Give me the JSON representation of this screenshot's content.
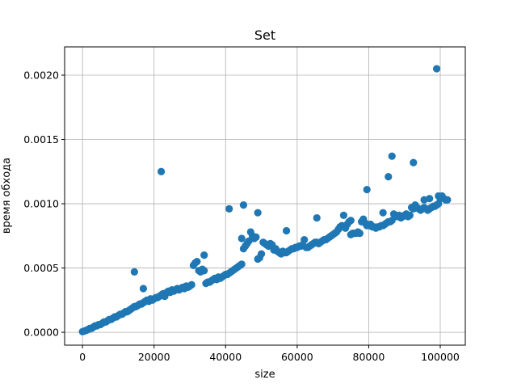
{
  "chart_data": {
    "type": "scatter",
    "title": "Set",
    "xlabel": "size",
    "ylabel": "время обхода",
    "xlim": [
      -5000,
      107000
    ],
    "ylim": [
      -0.0001,
      0.00222
    ],
    "xticks": [
      0,
      20000,
      40000,
      60000,
      80000,
      100000
    ],
    "xtick_labels": [
      "0",
      "20000",
      "40000",
      "60000",
      "80000",
      "100000"
    ],
    "yticks": [
      0.0,
      0.0005,
      0.001,
      0.0015,
      0.002
    ],
    "ytick_labels": [
      "0.0000",
      "0.0005",
      "0.0010",
      "0.0015",
      "0.0020"
    ],
    "grid": true,
    "color": "#1f77b4",
    "series": [
      {
        "points": [
          [
            0,
            5e-06
          ],
          [
            500,
            1e-05
          ],
          [
            1000,
            1.5e-05
          ],
          [
            1500,
            2e-05
          ],
          [
            2000,
            3e-05
          ],
          [
            2500,
            3e-05
          ],
          [
            3000,
            4e-05
          ],
          [
            3500,
            5e-05
          ],
          [
            4000,
            5e-05
          ],
          [
            4500,
            6e-05
          ],
          [
            5000,
            6e-05
          ],
          [
            5500,
            7e-05
          ],
          [
            6000,
            8e-05
          ],
          [
            6500,
            8e-05
          ],
          [
            7000,
            9e-05
          ],
          [
            7500,
            0.0001
          ],
          [
            8000,
            0.0001
          ],
          [
            8500,
            0.00011
          ],
          [
            9000,
            0.00012
          ],
          [
            9500,
            0.00012
          ],
          [
            10000,
            0.00013
          ],
          [
            10500,
            0.00014
          ],
          [
            11000,
            0.00014
          ],
          [
            11500,
            0.00015
          ],
          [
            12000,
            0.00016
          ],
          [
            12500,
            0.00016
          ],
          [
            13000,
            0.00017
          ],
          [
            13500,
            0.00018
          ],
          [
            14000,
            0.00019
          ],
          [
            14500,
            0.0002
          ],
          [
            15000,
            0.0002
          ],
          [
            15500,
            0.00021
          ],
          [
            16000,
            0.00022
          ],
          [
            16500,
            0.00022
          ],
          [
            17000,
            0.00023
          ],
          [
            17500,
            0.00024
          ],
          [
            18000,
            0.00025
          ],
          [
            18500,
            0.00024
          ],
          [
            19000,
            0.00026
          ],
          [
            19500,
            0.00025
          ],
          [
            20000,
            0.00026
          ],
          [
            20500,
            0.00027
          ],
          [
            21000,
            0.00027
          ],
          [
            21500,
            0.00028
          ],
          [
            22000,
            0.00029
          ],
          [
            22500,
            0.0003
          ],
          [
            23000,
            0.00028
          ],
          [
            23500,
            0.00031
          ],
          [
            24000,
            0.00032
          ],
          [
            24500,
            0.00031
          ],
          [
            25000,
            0.00033
          ],
          [
            25500,
            0.00032
          ],
          [
            26000,
            0.00033
          ],
          [
            26500,
            0.00034
          ],
          [
            27000,
            0.00033
          ],
          [
            27500,
            0.00034
          ],
          [
            28000,
            0.00035
          ],
          [
            28500,
            0.00034
          ],
          [
            29000,
            0.00036
          ],
          [
            29500,
            0.00035
          ],
          [
            30000,
            0.00036
          ],
          [
            30500,
            0.00037
          ],
          [
            31000,
            0.00052
          ],
          [
            31500,
            0.00054
          ],
          [
            32000,
            0.00055
          ],
          [
            32500,
            0.00048
          ],
          [
            33000,
            0.00047
          ],
          [
            33500,
            0.00049
          ],
          [
            34000,
            0.00048
          ],
          [
            34500,
            0.00038
          ],
          [
            35000,
            0.00039
          ],
          [
            35500,
            0.00039
          ],
          [
            36000,
            0.0004
          ],
          [
            36500,
            0.00041
          ],
          [
            37000,
            0.00042
          ],
          [
            37500,
            0.00041
          ],
          [
            38000,
            0.00043
          ],
          [
            38500,
            0.00042
          ],
          [
            39000,
            0.00043
          ],
          [
            39500,
            0.00044
          ],
          [
            40000,
            0.00045
          ],
          [
            40500,
            0.00045
          ],
          [
            41000,
            0.00046
          ],
          [
            41500,
            0.00047
          ],
          [
            42000,
            0.00048
          ],
          [
            42500,
            0.00049
          ],
          [
            43000,
            0.0005
          ],
          [
            43500,
            0.00051
          ],
          [
            44000,
            0.00052
          ],
          [
            44500,
            0.00053
          ],
          [
            45000,
            0.00065
          ],
          [
            45500,
            0.00067
          ],
          [
            46000,
            0.00069
          ],
          [
            46500,
            0.00071
          ],
          [
            47000,
            0.00078
          ],
          [
            47500,
            0.00075
          ],
          [
            48000,
            0.00073
          ],
          [
            48500,
            0.00074
          ],
          [
            49000,
            0.00057
          ],
          [
            49500,
            0.00058
          ],
          [
            50000,
            0.00061
          ],
          [
            50500,
            0.0007
          ],
          [
            51000,
            0.00069
          ],
          [
            51500,
            0.00068
          ],
          [
            52000,
            0.00067
          ],
          [
            52500,
            0.00069
          ],
          [
            53000,
            0.00068
          ],
          [
            53500,
            0.00064
          ],
          [
            54000,
            0.00065
          ],
          [
            54500,
            0.00063
          ],
          [
            55000,
            0.00062
          ],
          [
            55500,
            0.00061
          ],
          [
            56000,
            0.00063
          ],
          [
            56500,
            0.00062
          ],
          [
            57000,
            0.00062
          ],
          [
            57500,
            0.00063
          ],
          [
            58000,
            0.00064
          ],
          [
            58500,
            0.00065
          ],
          [
            59000,
            0.00065
          ],
          [
            59500,
            0.00066
          ],
          [
            60000,
            0.00066
          ],
          [
            60500,
            0.00067
          ],
          [
            61000,
            0.00067
          ],
          [
            61500,
            0.00068
          ],
          [
            62000,
            0.00072
          ],
          [
            62500,
            0.00066
          ],
          [
            63000,
            0.00066
          ],
          [
            63500,
            0.00067
          ],
          [
            64000,
            0.00068
          ],
          [
            64500,
            0.00069
          ],
          [
            65000,
            0.0007
          ],
          [
            65500,
            0.0007
          ],
          [
            66000,
            0.00069
          ],
          [
            66500,
            0.0007
          ],
          [
            67000,
            0.00071
          ],
          [
            67500,
            0.00072
          ],
          [
            68000,
            0.00072
          ],
          [
            68500,
            0.00073
          ],
          [
            69000,
            0.00074
          ],
          [
            69500,
            0.00075
          ],
          [
            70000,
            0.00076
          ],
          [
            70500,
            0.00077
          ],
          [
            71000,
            0.00078
          ],
          [
            71500,
            0.0008
          ],
          [
            72000,
            0.00082
          ],
          [
            72500,
            0.00083
          ],
          [
            73000,
            0.00082
          ],
          [
            73500,
            0.00081
          ],
          [
            74000,
            0.00084
          ],
          [
            74500,
            0.00086
          ],
          [
            75000,
            0.00076
          ],
          [
            75500,
            0.00077
          ],
          [
            76000,
            0.00077
          ],
          [
            76500,
            0.00077
          ],
          [
            77000,
            0.00078
          ],
          [
            77500,
            0.00077
          ],
          [
            78000,
            0.00086
          ],
          [
            78500,
            0.00088
          ],
          [
            79000,
            0.00085
          ],
          [
            79500,
            0.00083
          ],
          [
            80000,
            0.00083
          ],
          [
            80500,
            0.00084
          ],
          [
            81000,
            0.00082
          ],
          [
            81500,
            0.00082
          ],
          [
            82000,
            0.00081
          ],
          [
            82500,
            0.00082
          ],
          [
            83000,
            0.00082
          ],
          [
            83500,
            0.00083
          ],
          [
            84000,
            0.00083
          ],
          [
            84500,
            0.00084
          ],
          [
            85000,
            0.00085
          ],
          [
            85500,
            0.00086
          ],
          [
            86000,
            0.00086
          ],
          [
            86500,
            0.00087
          ],
          [
            87000,
            0.00092
          ],
          [
            87500,
            0.00091
          ],
          [
            88000,
            0.0009
          ],
          [
            88500,
            0.00091
          ],
          [
            89000,
            0.00089
          ],
          [
            89500,
            0.0009
          ],
          [
            90000,
            0.00091
          ],
          [
            90500,
            0.00092
          ],
          [
            91000,
            0.0009
          ],
          [
            91500,
            0.00091
          ],
          [
            92000,
            0.00097
          ],
          [
            92500,
            0.00096
          ],
          [
            93000,
            0.00099
          ],
          [
            93500,
            0.00097
          ],
          [
            94000,
            0.00096
          ],
          [
            94500,
            0.00095
          ],
          [
            95000,
            0.00096
          ],
          [
            95500,
            0.00097
          ],
          [
            96000,
            0.00096
          ],
          [
            96500,
            0.00095
          ],
          [
            97000,
            0.00096
          ],
          [
            97500,
            0.00097
          ],
          [
            98000,
            0.00098
          ],
          [
            98500,
            0.00098
          ],
          [
            99000,
            0.00099
          ],
          [
            99500,
            0.001
          ],
          [
            100000,
            0.00104
          ],
          [
            100500,
            0.00105
          ],
          [
            101000,
            0.00104
          ],
          [
            101500,
            0.00103
          ],
          [
            102000,
            0.00103
          ],
          [
            14500,
            0.00047
          ],
          [
            17000,
            0.00034
          ],
          [
            22000,
            0.00125
          ],
          [
            34000,
            0.0006
          ],
          [
            41000,
            0.00096
          ],
          [
            44500,
            0.00073
          ],
          [
            45000,
            0.00099
          ],
          [
            49000,
            0.00093
          ],
          [
            57000,
            0.00079
          ],
          [
            65500,
            0.00089
          ],
          [
            73000,
            0.00091
          ],
          [
            75000,
            0.00087
          ],
          [
            79500,
            0.00111
          ],
          [
            84000,
            0.00093
          ],
          [
            85500,
            0.00121
          ],
          [
            86500,
            0.00137
          ],
          [
            92500,
            0.00132
          ],
          [
            95500,
            0.00103
          ],
          [
            97000,
            0.00104
          ],
          [
            99000,
            0.00205
          ],
          [
            99500,
            0.00106
          ],
          [
            100500,
            0.00106
          ]
        ]
      }
    ]
  }
}
